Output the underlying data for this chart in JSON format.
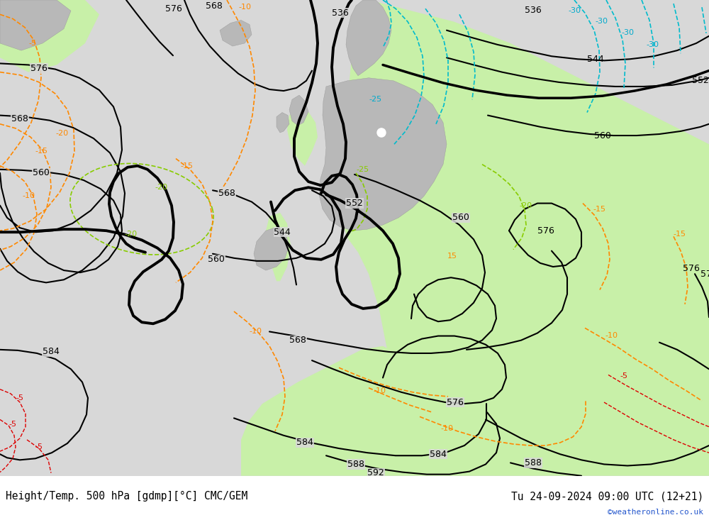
{
  "title_left": "Height/Temp. 500 hPa [gdmp][°C] CMC/GEM",
  "title_right": "Tu 24-09-2024 09:00 UTC (12+21)",
  "watermark": "©weatheronline.co.uk",
  "sea_color": "#d8d8d8",
  "green_color": "#c8f0a8",
  "land_color": "#b8b8b8",
  "figsize": [
    10.0,
    7.33
  ],
  "dpi": 100
}
